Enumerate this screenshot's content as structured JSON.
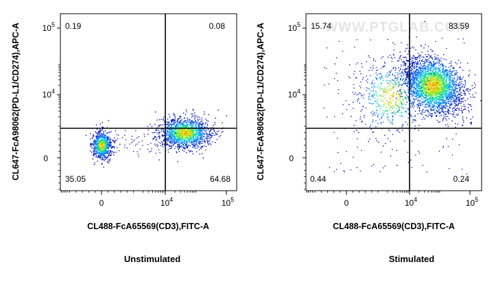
{
  "watermark": "WWW.PTGLAB.COM",
  "colors": {
    "frame": "#000000",
    "gate": "#000000",
    "background": "#ffffff"
  },
  "chart_data": [
    {
      "type": "scatter",
      "caption": "Unstimulated",
      "xlabel": "CL488-FcA65569(CD3),FITC-A",
      "ylabel": "CL647-FcA98062(PD-L1/CD274),APC-A",
      "x_scale": "biexponential",
      "y_scale": "biexponential",
      "xticks": [
        {
          "base": "0",
          "exp": ""
        },
        {
          "base": "10",
          "exp": "4"
        },
        {
          "base": "10",
          "exp": "5"
        }
      ],
      "yticks": [
        {
          "base": "0",
          "exp": ""
        },
        {
          "base": "10",
          "exp": "4"
        },
        {
          "base": "10",
          "exp": "5"
        }
      ],
      "quadrant_gate": {
        "x": 12000,
        "y": 3000
      },
      "quadrants": {
        "upper_left": "0.19",
        "upper_right": "0.08",
        "lower_left": "35.05",
        "lower_right": "64.68"
      },
      "populations": [
        {
          "center": [
            0,
            400
          ],
          "weight": 0.35
        },
        {
          "center": [
            40000,
            800
          ],
          "weight": 0.63
        }
      ]
    },
    {
      "type": "scatter",
      "caption": "Stimulated",
      "xlabel": "CL488-FcA65569(CD3),FITC-A",
      "ylabel": "CL647-FcA98062(PD-L1/CD274),APC-A",
      "x_scale": "biexponential",
      "y_scale": "biexponential",
      "xticks": [
        {
          "base": "0",
          "exp": ""
        },
        {
          "base": "10",
          "exp": "4"
        },
        {
          "base": "10",
          "exp": "5"
        }
      ],
      "yticks": [
        {
          "base": "0",
          "exp": ""
        },
        {
          "base": "10",
          "exp": "4"
        },
        {
          "base": "10",
          "exp": "5"
        }
      ],
      "quadrant_gate": {
        "x": 12000,
        "y": 3000
      },
      "quadrants": {
        "upper_left": "15.74",
        "upper_right": "83.59",
        "lower_left": "0.44",
        "lower_right": "0.24"
      },
      "populations": [
        {
          "center": [
            55000,
            20000
          ],
          "weight": 0.84
        },
        {
          "center": [
            2500,
            9000
          ],
          "weight": 0.16
        }
      ]
    }
  ]
}
